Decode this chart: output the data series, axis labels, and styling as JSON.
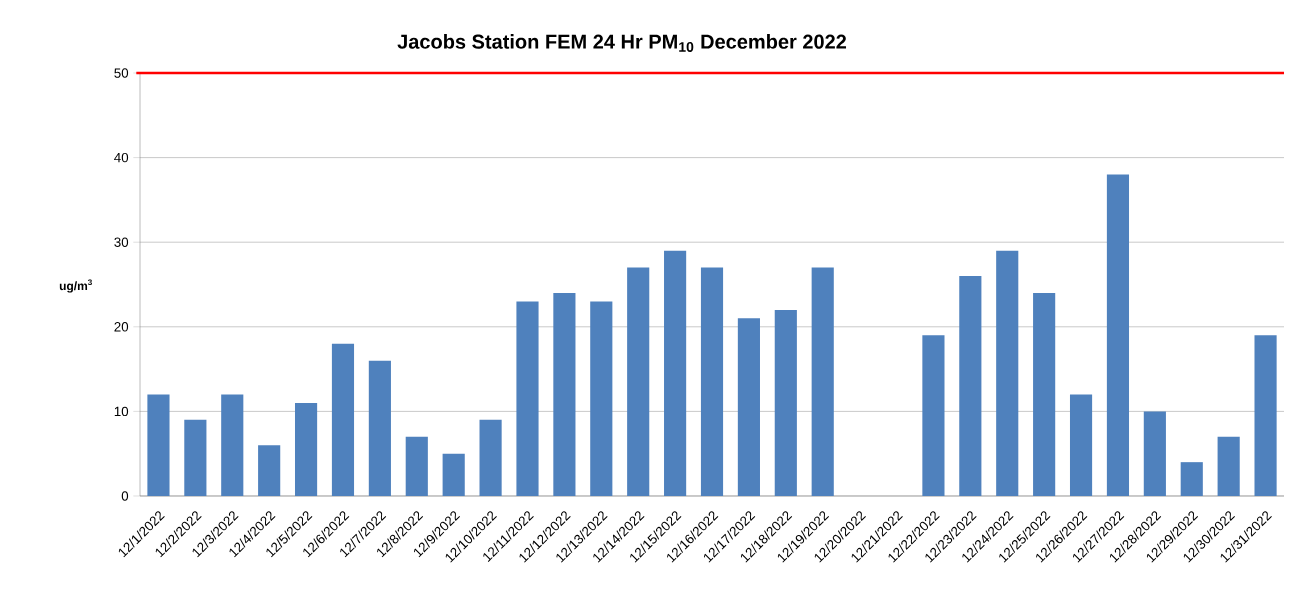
{
  "chart_data": {
    "type": "bar",
    "title": "Jacobs Station FEM 24 Hr PM$_{10}$ December 2022",
    "ylabel": "ug/m$^{3}$",
    "categories": [
      "12/1/2022",
      "12/2/2022",
      "12/3/2022",
      "12/4/2022",
      "12/5/2022",
      "12/6/2022",
      "12/7/2022",
      "12/8/2022",
      "12/9/2022",
      "12/10/2022",
      "12/11/2022",
      "12/12/2022",
      "12/13/2022",
      "12/14/2022",
      "12/15/2022",
      "12/16/2022",
      "12/17/2022",
      "12/18/2022",
      "12/19/2022",
      "12/20/2022",
      "12/21/2022",
      "12/22/2022",
      "12/23/2022",
      "12/24/2022",
      "12/25/2022",
      "12/26/2022",
      "12/27/2022",
      "12/28/2022",
      "12/29/2022",
      "12/30/2022",
      "12/31/2022"
    ],
    "values": [
      12,
      9,
      12,
      6,
      11,
      18,
      16,
      7,
      5,
      9,
      23,
      24,
      23,
      27,
      29,
      27,
      21,
      22,
      27,
      null,
      null,
      19,
      26,
      29,
      24,
      12,
      38,
      10,
      4,
      7,
      19
    ],
    "color": "#4f81bd",
    "ylim": [
      0,
      50
    ],
    "yticks": [
      0,
      10,
      20,
      30,
      40,
      50
    ],
    "grid": "y",
    "ref_lines": [
      {
        "axis": "y",
        "value": 50,
        "color": "#ff0000"
      }
    ]
  }
}
